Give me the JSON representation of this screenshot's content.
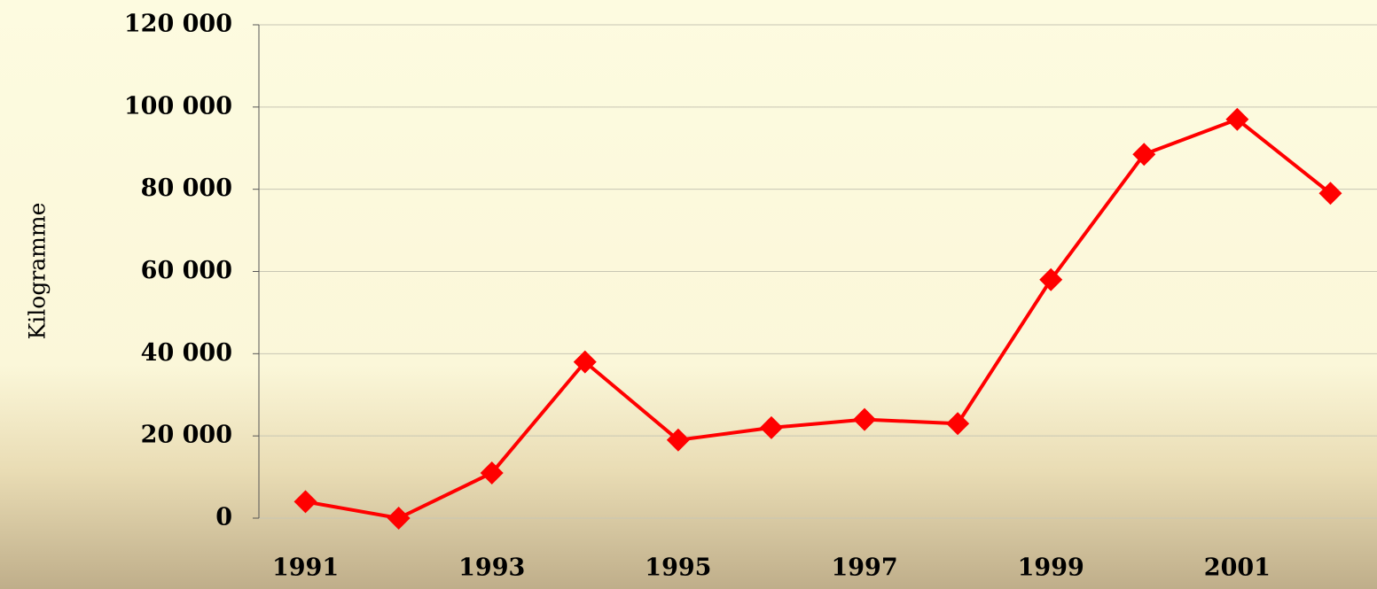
{
  "chart_data": {
    "type": "line",
    "y_label": "Kilogramme",
    "categories": [
      "1991",
      null,
      "1993",
      null,
      "1995",
      null,
      "1997",
      null,
      "1999",
      null,
      "2001",
      null
    ],
    "values": [
      4000,
      0,
      11000,
      38000,
      19000,
      22000,
      24000,
      23000,
      58000,
      88500,
      97000,
      79000
    ],
    "color": "#ff0000",
    "ylim": [
      0,
      120000
    ],
    "yticks": [
      0,
      {
        "value": 20000,
        "label": "20 000"
      },
      {
        "value": 40000,
        "label": "40 000"
      },
      {
        "value": 60000,
        "label": "60 000"
      },
      {
        "value": 80000,
        "label": "80 000"
      },
      {
        "value": 100000,
        "label": "100 000"
      },
      {
        "value": 120000,
        "label": "120 000"
      }
    ],
    "grid": true
  }
}
